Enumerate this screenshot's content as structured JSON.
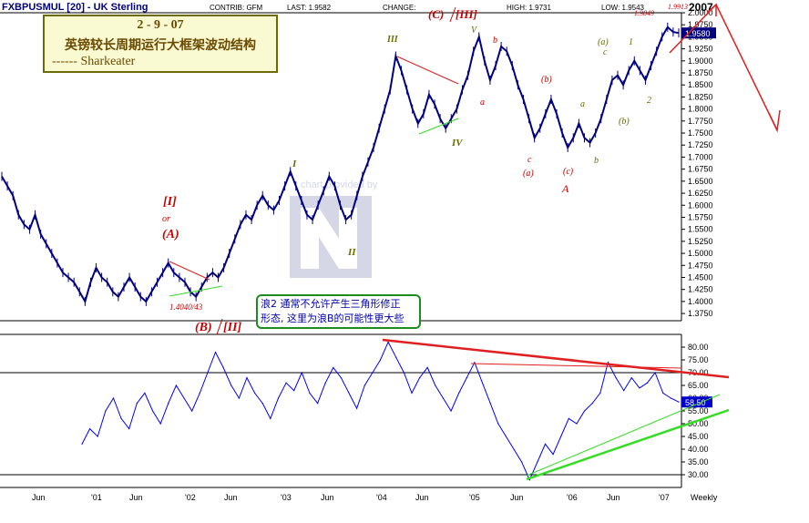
{
  "header": {
    "symbol": "FXBPUSMUL [20] - UK Sterling",
    "contrib": "CONTRIB: GFM",
    "last": "LAST: 1.9582",
    "change": "CHANGE:",
    "high": "HIGH: 1.9731",
    "low": "LOW: 1.9543",
    "year": "2007"
  },
  "title_box": {
    "line1": "2 - 9 - 07",
    "line2": "英镑较长周期运行大框架波动结构",
    "line3": "------ Sharkeater"
  },
  "note_box": {
    "line1": "浪2 通常不允许产生三角形修正",
    "line2": "形态, 这里为浪B的可能性更大些"
  },
  "watermark": "chart provided by",
  "colors": {
    "price": "#000080",
    "rsi": "#0000ff",
    "red_annot": "#cc0000",
    "olive_annot": "#6b6b00",
    "trend_red": "#e02020",
    "trend_green": "#33dd22",
    "grid": "#000000"
  },
  "chart_data": [
    {
      "type": "line",
      "title": "FXBPUSMUL [20] - UK Sterling",
      "period": "Weekly",
      "ylim": [
        1.36,
        2.0
      ],
      "y_ticks": [
        "2.0000",
        "1.9750",
        "1.9500",
        "1.9250",
        "1.9000",
        "1.8750",
        "1.8500",
        "1.8250",
        "1.8000",
        "1.7750",
        "1.7500",
        "1.7250",
        "1.7000",
        "1.6750",
        "1.6500",
        "1.6250",
        "1.6000",
        "1.5750",
        "1.5500",
        "1.5250",
        "1.5000",
        "1.4750",
        "1.4500",
        "1.4250",
        "1.4000",
        "1.3750"
      ],
      "x_labels": [
        "Jun",
        "'01",
        "Jun",
        "'02",
        "Jun",
        "'03",
        "Jun",
        "'04",
        "Jun",
        "'05",
        "Jun",
        "'06",
        "Jun",
        "'07",
        "Weekly"
      ],
      "series": [
        {
          "values": [
            1.66,
            1.64,
            1.62,
            1.58,
            1.56,
            1.55,
            1.58,
            1.54,
            1.52,
            1.5,
            1.48,
            1.46,
            1.45,
            1.44,
            1.42,
            1.4,
            1.44,
            1.47,
            1.45,
            1.44,
            1.42,
            1.41,
            1.43,
            1.45,
            1.43,
            1.41,
            1.4,
            1.42,
            1.44,
            1.46,
            1.48,
            1.46,
            1.45,
            1.44,
            1.42,
            1.41,
            1.43,
            1.45,
            1.46,
            1.45,
            1.47,
            1.5,
            1.53,
            1.56,
            1.58,
            1.57,
            1.6,
            1.62,
            1.6,
            1.59,
            1.61,
            1.64,
            1.67,
            1.64,
            1.61,
            1.58,
            1.57,
            1.6,
            1.63,
            1.66,
            1.64,
            1.6,
            1.57,
            1.58,
            1.62,
            1.66,
            1.69,
            1.72,
            1.76,
            1.8,
            1.84,
            1.91,
            1.88,
            1.84,
            1.8,
            1.77,
            1.79,
            1.83,
            1.81,
            1.78,
            1.76,
            1.78,
            1.8,
            1.84,
            1.87,
            1.92,
            1.95,
            1.9,
            1.86,
            1.89,
            1.93,
            1.92,
            1.89,
            1.85,
            1.82,
            1.78,
            1.74,
            1.76,
            1.79,
            1.82,
            1.79,
            1.75,
            1.72,
            1.74,
            1.77,
            1.74,
            1.73,
            1.75,
            1.78,
            1.82,
            1.86,
            1.87,
            1.85,
            1.88,
            1.9,
            1.88,
            1.86,
            1.89,
            1.92,
            1.95,
            1.97,
            1.96,
            1.958
          ]
        }
      ],
      "annotations": [
        "(C)",
        "[III]",
        "III",
        "V",
        "b",
        "(a)",
        "1",
        "c",
        "a",
        "(b)",
        "(b)",
        "a",
        "2",
        "IV",
        "c",
        "(a)",
        "(c)",
        "A",
        "b",
        "I",
        "[I]",
        "or",
        "(A)",
        "1.4040/43",
        "(B)",
        "[II]",
        "II",
        "1.9849",
        "1.9913"
      ]
    },
    {
      "type": "line",
      "title": "",
      "ylim": [
        25,
        85
      ],
      "y_ticks": [
        "80.00",
        "75.00",
        "70.00",
        "65.00",
        "60.00",
        "55.00",
        "50.00",
        "45.00",
        "40.00",
        "35.00",
        "30.00"
      ],
      "last_label": "58.50",
      "reference_lines": [
        70,
        30
      ],
      "series": [
        {
          "values": [
            42,
            48,
            45,
            55,
            60,
            52,
            48,
            58,
            62,
            55,
            50,
            58,
            65,
            60,
            55,
            62,
            70,
            78,
            72,
            65,
            60,
            68,
            62,
            58,
            52,
            60,
            66,
            63,
            70,
            62,
            58,
            66,
            72,
            68,
            62,
            56,
            65,
            70,
            75,
            82,
            76,
            70,
            62,
            68,
            72,
            65,
            60,
            55,
            62,
            68,
            74,
            66,
            58,
            50,
            45,
            40,
            35,
            28,
            35,
            42,
            38,
            45,
            52,
            50,
            55,
            58,
            62,
            74,
            68,
            63,
            68,
            64,
            66,
            70,
            62,
            60,
            58.5
          ]
        }
      ]
    }
  ]
}
